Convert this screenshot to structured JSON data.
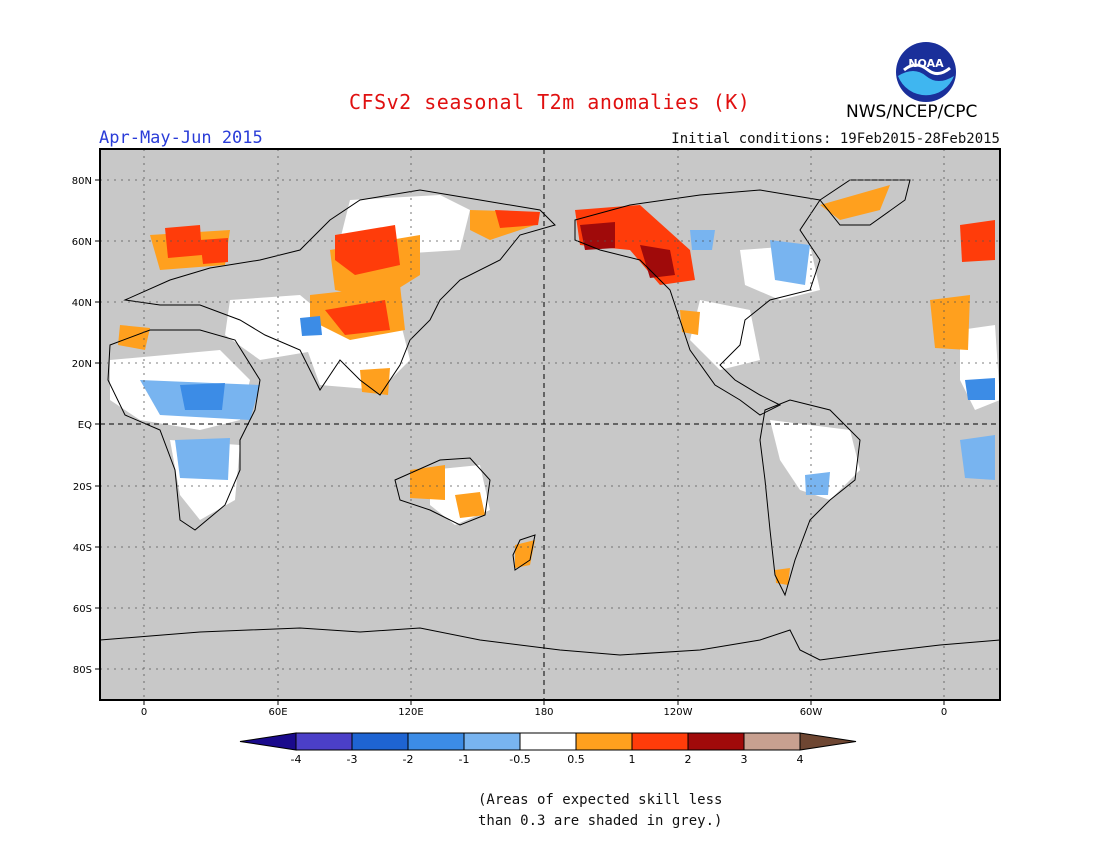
{
  "header": {
    "title": "CFSv2 seasonal T2m anomalies (K)",
    "period": "Apr-May-Jun 2015",
    "initial_conditions": "Initial conditions: 19Feb2015-28Feb2015",
    "organization": "NWS/NCEP/CPC",
    "logo_text": "NOAA"
  },
  "axes": {
    "lat_ticks": [
      "80N",
      "60N",
      "40N",
      "20N",
      "EQ",
      "20S",
      "40S",
      "60S",
      "80S"
    ],
    "lon_ticks": [
      "0",
      "60E",
      "120E",
      "180",
      "120W",
      "60W",
      "0"
    ]
  },
  "legend": {
    "labels": [
      "-4",
      "-3",
      "-2",
      "-1",
      "-0.5",
      "0.5",
      "1",
      "2",
      "3",
      "4"
    ],
    "colors": [
      "#1a0a8c",
      "#4b3fc8",
      "#1e64d2",
      "#3c8ce6",
      "#78b4f0",
      "#ffffff",
      "#ffa01e",
      "#ff3c0a",
      "#a00a0a",
      "#c8a090",
      "#6e4632"
    ]
  },
  "footnote": {
    "line1": "(Areas of expected skill less",
    "line2": "than 0.3 are shaded in grey.)"
  },
  "style": {
    "skill_mask_grey": "#c8c8c8",
    "coast_color": "#000000"
  }
}
